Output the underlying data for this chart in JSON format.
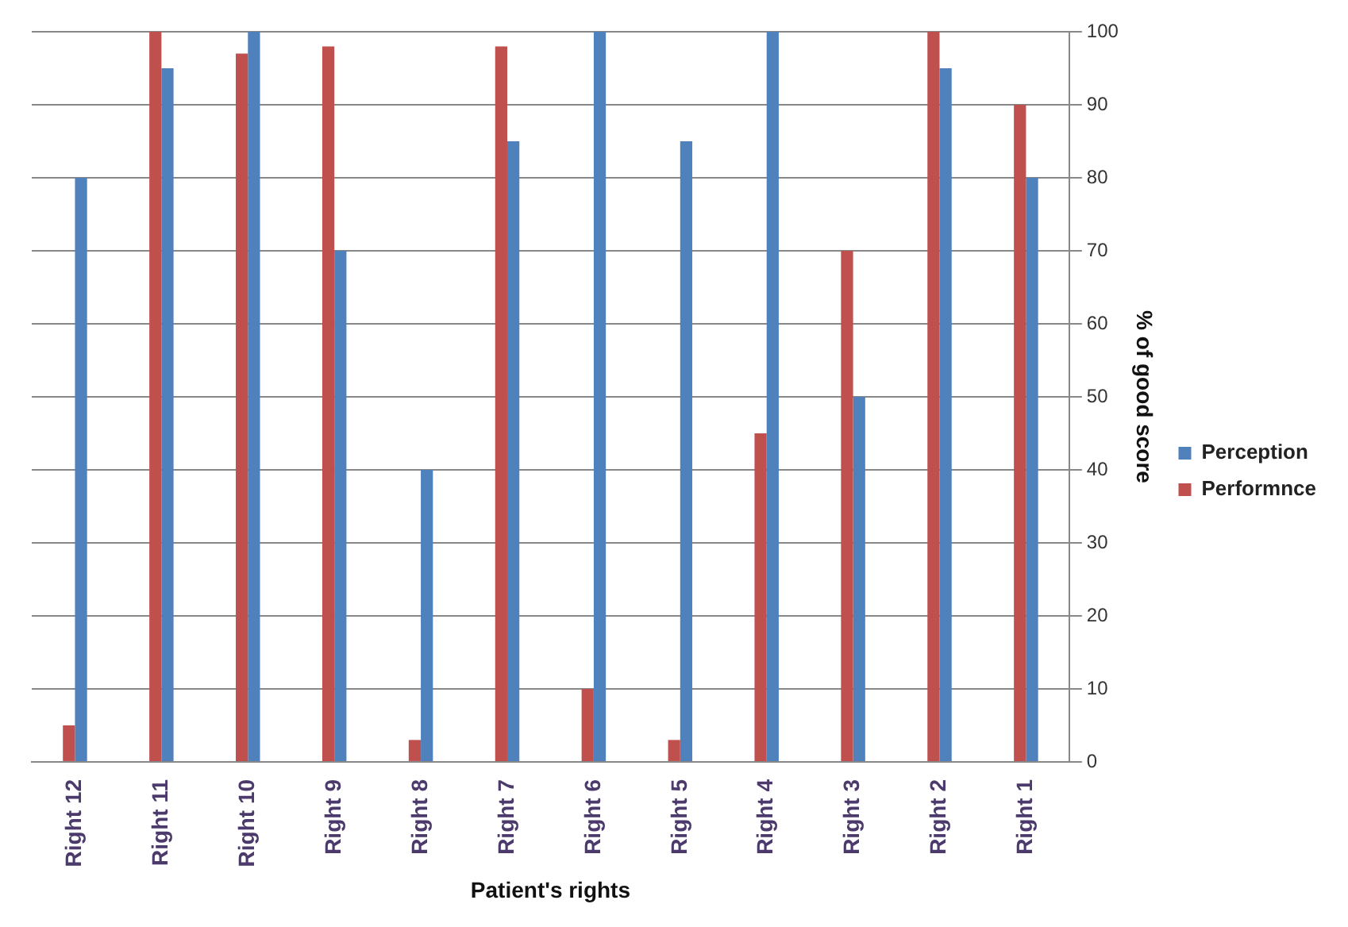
{
  "chart_data": {
    "type": "bar",
    "xlabel": "Patient's rights",
    "ylabel": "% of good score",
    "categories": [
      "Right 12",
      "Right 11",
      "Right 10",
      "Right 9",
      "Right 8",
      "Right 7",
      "Right 6",
      "Right 5",
      "Right 4",
      "Right 3",
      "Right 2",
      "Right 1"
    ],
    "series": [
      {
        "name": "Performnce",
        "color": "#c0504d",
        "values": [
          5,
          100,
          97,
          98,
          3,
          98,
          10,
          3,
          45,
          70,
          100,
          90
        ]
      },
      {
        "name": "Perception",
        "color": "#4f81bd",
        "values": [
          80,
          95,
          100,
          70,
          40,
          85,
          100,
          85,
          100,
          50,
          95,
          80
        ]
      }
    ],
    "ylim": [
      0,
      100
    ],
    "yticks": [
      0,
      10,
      20,
      30,
      40,
      50,
      60,
      70,
      80,
      90,
      100
    ],
    "grid": "y",
    "legend": "right"
  }
}
